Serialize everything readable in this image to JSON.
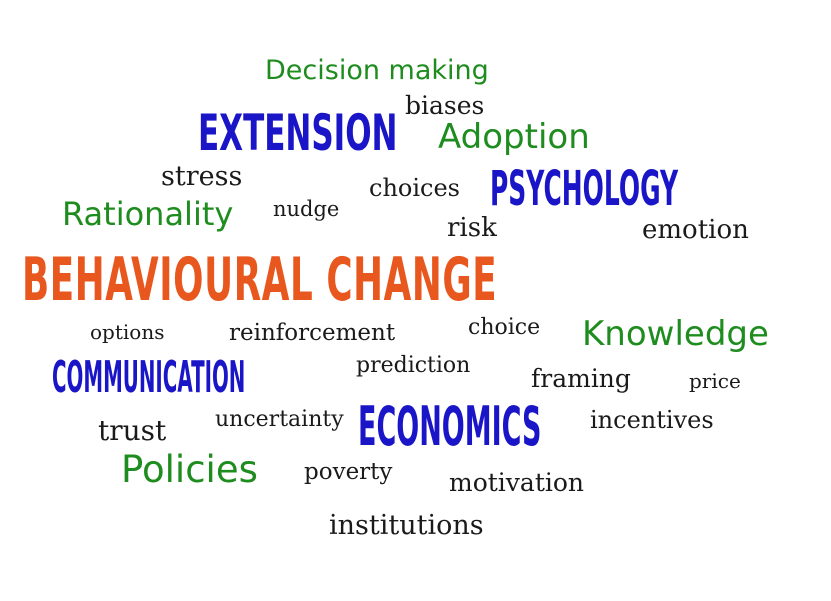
{
  "word_cloud": {
    "main_phrase": "BEHAVIOURAL CHANGE",
    "words": {
      "decision_making": "Decision making",
      "biases": "biases",
      "extension": "EXTENSION",
      "adoption": "Adoption",
      "stress": "stress",
      "choices": "choices",
      "psychology": "PSYCHOLOGY",
      "rationality": "Rationality",
      "nudge": "nudge",
      "risk": "risk",
      "emotion": "emotion",
      "options": "options",
      "reinforcement": "reinforcement",
      "choice": "choice",
      "knowledge": "Knowledge",
      "communication": "COMMUNICATION",
      "prediction": "prediction",
      "framing": "framing",
      "price": "price",
      "trust": "trust",
      "uncertainty": "uncertainty",
      "economics": "ECONOMICS",
      "incentives": "incentives",
      "policies": "Policies",
      "poverty": "poverty",
      "motivation": "motivation",
      "institutions": "institutions"
    },
    "colors": {
      "orange": "#e8571e",
      "blue": "#1a16c8",
      "green": "#1e8c1e",
      "black": "#1a1a1a"
    }
  }
}
